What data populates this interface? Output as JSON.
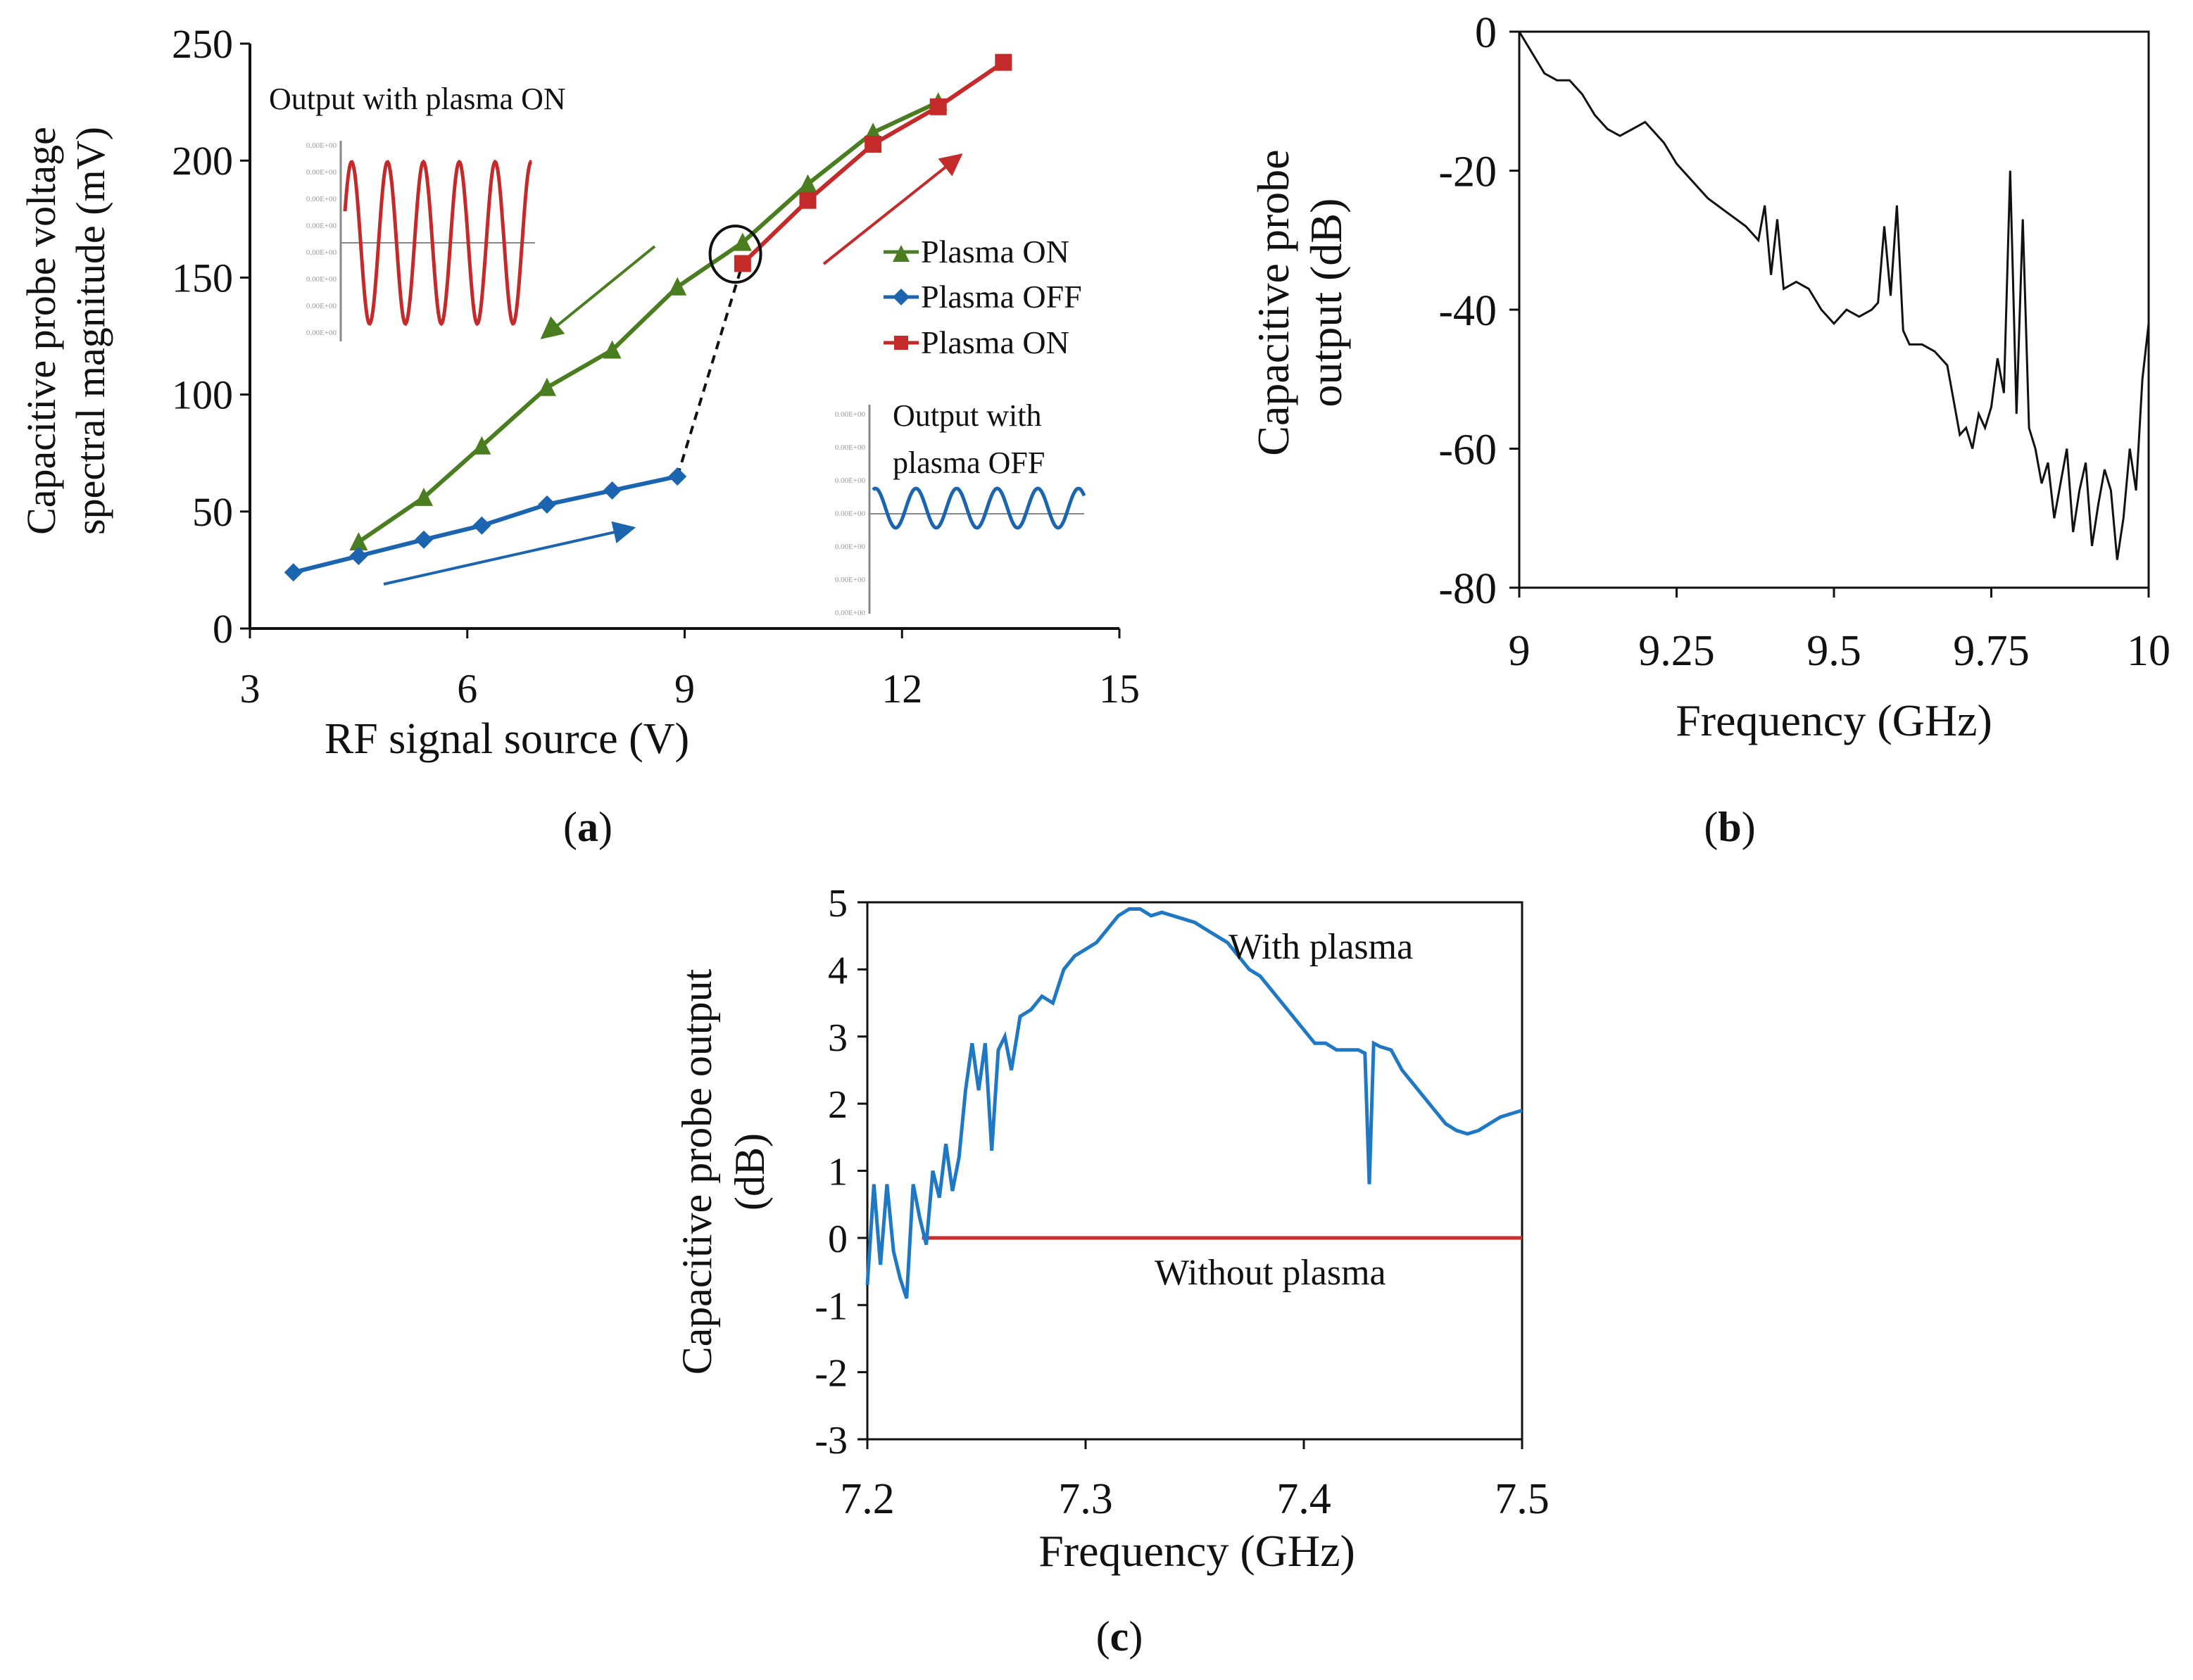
{
  "colors": {
    "green": "#4a7d1f",
    "blue": "#1a64b0",
    "red": "#c52a2a",
    "black": "#111111",
    "c_blue": "#1f78c4",
    "c_red": "#cc2b2b"
  },
  "panels": {
    "a_label": "a",
    "b_label": "b",
    "c_label": "c"
  },
  "chart_data": [
    {
      "id": "a",
      "type": "line",
      "xlabel": "RF signal source (V)",
      "ylabel_lines": [
        "Capacitive probe voltage",
        "spectral magnitude (mV)"
      ],
      "xlim": [
        3,
        15
      ],
      "ylim": [
        0,
        250
      ],
      "xticks": [
        3,
        6,
        9,
        12,
        15
      ],
      "yticks": [
        0,
        50,
        100,
        150,
        200,
        250
      ],
      "series": [
        {
          "name": "Plasma ON",
          "marker": "triangle",
          "color": "#4a7d1f",
          "x": [
            4.5,
            5.4,
            6.2,
            7.1,
            8.0,
            8.9,
            9.8,
            10.7,
            11.6,
            12.5
          ],
          "y": [
            37,
            56,
            78,
            103,
            119,
            146,
            165,
            190,
            212,
            225
          ]
        },
        {
          "name": "Plasma OFF",
          "marker": "diamond",
          "color": "#1a64b0",
          "x": [
            3.6,
            4.5,
            5.4,
            6.2,
            7.1,
            8.0,
            8.9
          ],
          "y": [
            24,
            31,
            38,
            44,
            53,
            59,
            65
          ]
        },
        {
          "name": "Plasma ON",
          "marker": "square",
          "color": "#c52a2a",
          "x": [
            9.8,
            10.7,
            11.6,
            12.5,
            13.4
          ],
          "y": [
            156,
            183,
            207,
            223,
            242
          ]
        }
      ],
      "transition": {
        "x": [
          8.9,
          9.8
        ],
        "y": [
          65,
          156
        ]
      },
      "legend": [
        "Plasma ON",
        "Plasma OFF",
        "Plasma ON"
      ],
      "inset_on_title": "Output with plasma ON",
      "inset_off_title_lines": [
        "Output with",
        "plasma OFF"
      ],
      "inset_tick_label": "0.00E+00"
    },
    {
      "id": "b",
      "type": "line",
      "xlabel": "Frequency (GHz)",
      "ylabel_lines": [
        "Capacitive probe",
        "output (dB)"
      ],
      "xlim": [
        9,
        10
      ],
      "ylim": [
        -80,
        0
      ],
      "xticks": [
        9,
        9.25,
        9.5,
        9.75,
        10
      ],
      "yticks": [
        0,
        -20,
        -40,
        -60,
        -80
      ],
      "xtick_labels": [
        "9",
        "9.25",
        "9.5",
        "9.75",
        "10"
      ],
      "series": [
        {
          "name": "Capacitive probe output",
          "x": [
            9.0,
            9.02,
            9.04,
            9.06,
            9.08,
            9.1,
            9.12,
            9.14,
            9.16,
            9.18,
            9.2,
            9.22,
            9.23,
            9.25,
            9.28,
            9.3,
            9.33,
            9.36,
            9.38,
            9.39,
            9.4,
            9.41,
            9.42,
            9.44,
            9.46,
            9.48,
            9.5,
            9.52,
            9.54,
            9.56,
            9.57,
            9.58,
            9.59,
            9.6,
            9.61,
            9.62,
            9.64,
            9.66,
            9.68,
            9.69,
            9.7,
            9.71,
            9.72,
            9.73,
            9.74,
            9.75,
            9.76,
            9.77,
            9.78,
            9.79,
            9.8,
            9.81,
            9.82,
            9.83,
            9.84,
            9.85,
            9.86,
            9.87,
            9.88,
            9.89,
            9.9,
            9.91,
            9.92,
            9.93,
            9.94,
            9.95,
            9.96,
            9.97,
            9.98,
            9.99,
            10.0
          ],
          "y": [
            0,
            -3,
            -6,
            -7,
            -7,
            -9,
            -12,
            -14,
            -15,
            -14,
            -13,
            -15,
            -16,
            -19,
            -22,
            -24,
            -26,
            -28,
            -30,
            -25,
            -35,
            -27,
            -37,
            -36,
            -37,
            -40,
            -42,
            -40,
            -41,
            -40,
            -39,
            -28,
            -38,
            -25,
            -43,
            -45,
            -45,
            -46,
            -48,
            -53,
            -58,
            -57,
            -60,
            -55,
            -57,
            -54,
            -47,
            -52,
            -20,
            -55,
            -27,
            -57,
            -60,
            -65,
            -62,
            -70,
            -65,
            -60,
            -72,
            -66,
            -62,
            -74,
            -68,
            -63,
            -66,
            -76,
            -70,
            -60,
            -66,
            -50,
            -42
          ]
        }
      ]
    },
    {
      "id": "c",
      "type": "line",
      "xlabel": "Frequency (GHz)",
      "ylabel_lines": [
        "Capacitive probe output",
        "(dB)"
      ],
      "xlim": [
        7.2,
        7.5
      ],
      "ylim": [
        -3,
        5
      ],
      "xticks": [
        7.2,
        7.3,
        7.4,
        7.5
      ],
      "yticks": [
        5,
        4,
        3,
        2,
        1,
        0,
        -1,
        -2,
        -3
      ],
      "series": [
        {
          "name": "With plasma",
          "x": [
            7.2,
            7.203,
            7.206,
            7.209,
            7.212,
            7.215,
            7.218,
            7.221,
            7.224,
            7.227,
            7.23,
            7.233,
            7.236,
            7.239,
            7.242,
            7.245,
            7.248,
            7.251,
            7.254,
            7.257,
            7.26,
            7.263,
            7.266,
            7.27,
            7.275,
            7.28,
            7.285,
            7.29,
            7.295,
            7.3,
            7.305,
            7.31,
            7.315,
            7.32,
            7.325,
            7.33,
            7.335,
            7.34,
            7.345,
            7.35,
            7.355,
            7.36,
            7.365,
            7.37,
            7.375,
            7.38,
            7.385,
            7.39,
            7.395,
            7.4,
            7.405,
            7.41,
            7.415,
            7.42,
            7.425,
            7.428,
            7.43,
            7.432,
            7.435,
            7.44,
            7.445,
            7.45,
            7.455,
            7.46,
            7.465,
            7.47,
            7.475,
            7.48,
            7.485,
            7.49,
            7.495,
            7.5
          ],
          "y": [
            -0.7,
            0.8,
            -0.4,
            0.8,
            -0.2,
            -0.6,
            -0.9,
            0.8,
            0.3,
            -0.1,
            1.0,
            0.6,
            1.4,
            0.7,
            1.2,
            2.2,
            2.9,
            2.2,
            2.9,
            1.3,
            2.8,
            3.0,
            2.5,
            3.3,
            3.4,
            3.6,
            3.5,
            4.0,
            4.2,
            4.3,
            4.4,
            4.6,
            4.8,
            4.9,
            4.9,
            4.8,
            4.85,
            4.8,
            4.75,
            4.7,
            4.6,
            4.5,
            4.4,
            4.2,
            4.0,
            3.9,
            3.7,
            3.5,
            3.3,
            3.1,
            2.9,
            2.9,
            2.8,
            2.8,
            2.8,
            2.75,
            0.8,
            2.9,
            2.85,
            2.8,
            2.5,
            2.3,
            2.1,
            1.9,
            1.7,
            1.6,
            1.55,
            1.6,
            1.7,
            1.8,
            1.85,
            1.9
          ]
        },
        {
          "name": "Without plasma",
          "x": [
            7.225,
            7.5
          ],
          "y": [
            0,
            0
          ]
        }
      ],
      "annotations": [
        "With plasma",
        "Without plasma"
      ]
    }
  ]
}
